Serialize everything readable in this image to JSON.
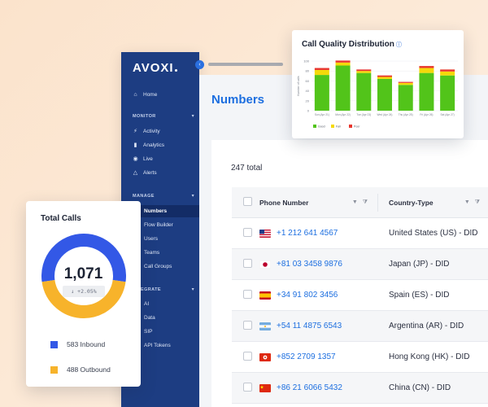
{
  "brand": {
    "name": "AVOXI"
  },
  "sidebar": {
    "home": "Home",
    "monitor_section": "MONITOR",
    "monitor_items": [
      "Activity",
      "Analytics",
      "Live",
      "Alerts"
    ],
    "manage_section": "MANAGE",
    "manage_items": [
      "Numbers",
      "Flow Builder",
      "Users",
      "Teams",
      "Call Groups"
    ],
    "integrate_section": "INTEGRATE",
    "integrate_items": [
      "AI",
      "Data",
      "SIP",
      "API Tokens"
    ]
  },
  "page": {
    "title": "Numbers",
    "total": "247 total"
  },
  "table": {
    "headers": {
      "phone": "Phone Number",
      "type": "Country-Type"
    },
    "rows": [
      {
        "flag": "us",
        "phone": "+1 212 641 4567",
        "type": "United States (US) - DID"
      },
      {
        "flag": "jp",
        "phone": "+81 03 3458 9876",
        "type": "Japan (JP) - DID"
      },
      {
        "flag": "es",
        "phone": "+34 91 802 3456",
        "type": "Spain (ES) - DID"
      },
      {
        "flag": "ar",
        "phone": "+54 11 4875 6543",
        "type": "Argentina (AR) - DID"
      },
      {
        "flag": "hk",
        "phone": "+852 2709 1357",
        "type": "Hong Kong (HK) - DID"
      },
      {
        "flag": "cn",
        "phone": "+86 21 6066 5432",
        "type": "China (CN) - DID"
      }
    ]
  },
  "total_calls": {
    "title": "Total Calls",
    "value": "1,071",
    "change": "↓ +2.05%",
    "inbound": {
      "label": "583 Inbound",
      "value": 583,
      "color": "#3358e6"
    },
    "outbound": {
      "label": "488 Outbound",
      "value": 488,
      "color": "#f7b32b"
    }
  },
  "chart_data": {
    "type": "bar",
    "title": "Call Quality Distribution",
    "ylabel": "Number of calls",
    "ylim": [
      0,
      100
    ],
    "yticks": [
      0,
      20,
      40,
      60,
      80,
      100
    ],
    "categories": [
      "Sun (Apr 21)",
      "Mon (Apr 22)",
      "Tue (Apr 23)",
      "Wed (Apr 24)",
      "Thu (Apr 25)",
      "Fri (Apr 26)",
      "Sat (Apr 27)"
    ],
    "stacked": true,
    "series": [
      {
        "name": "Good",
        "color": "#52c41a",
        "values": [
          72,
          91,
          76,
          64,
          52,
          76,
          71
        ]
      },
      {
        "name": "Fair",
        "color": "#f5d90a",
        "values": [
          10,
          6,
          4,
          4,
          4,
          10,
          8
        ]
      },
      {
        "name": "Poor",
        "color": "#e8362e",
        "values": [
          4,
          4,
          3,
          3,
          2,
          4,
          4
        ]
      }
    ]
  }
}
